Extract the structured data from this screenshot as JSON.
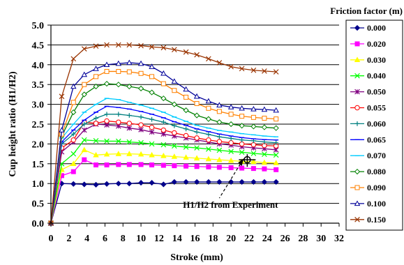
{
  "chart_data": {
    "type": "line",
    "xlabel": "Stroke (mm)",
    "ylabel": "Cup height ratio (H1/H2)",
    "xlim": [
      0,
      32
    ],
    "ylim": [
      0,
      5
    ],
    "xticks": [
      0,
      2,
      4,
      6,
      8,
      10,
      12,
      14,
      16,
      18,
      20,
      22,
      24,
      26,
      28,
      30,
      32
    ],
    "yticks": [
      "0.0",
      "0.5",
      "1.0",
      "1.5",
      "2.0",
      "2.5",
      "3.0",
      "3.5",
      "4.0",
      "4.5",
      "5.0"
    ],
    "grid": "horizontal",
    "legend_title": "Friction factor (m)",
    "legend_position": "right",
    "annotation": {
      "text": "H1/H2 from Experiment",
      "x": 21.8,
      "y": 1.6
    },
    "x": [
      0,
      1.2,
      2.5,
      3.7,
      5,
      6.2,
      7.5,
      8.7,
      10,
      11.2,
      12.5,
      13.7,
      15,
      16.2,
      17.5,
      18.7,
      20,
      21.2,
      22.5,
      23.7,
      25
    ],
    "series": [
      {
        "name": "0.000",
        "color": "#00008B",
        "marker": "diamond",
        "values": [
          0,
          1.0,
          0.99,
          0.98,
          0.97,
          0.99,
          1.0,
          1.0,
          1.02,
          1.02,
          0.98,
          1.04,
          1.04,
          1.04,
          1.04,
          1.04,
          1.04,
          1.04,
          1.04,
          1.04,
          1.04
        ]
      },
      {
        "name": "0.020",
        "color": "#FF00FF",
        "marker": "square",
        "values": [
          0,
          1.2,
          1.3,
          1.6,
          1.47,
          1.47,
          1.48,
          1.48,
          1.48,
          1.47,
          1.46,
          1.45,
          1.44,
          1.43,
          1.42,
          1.41,
          1.4,
          1.39,
          1.38,
          1.37,
          1.35
        ]
      },
      {
        "name": "0.030",
        "color": "#FFFF00",
        "marker": "triangle",
        "values": [
          0,
          1.35,
          1.5,
          1.85,
          1.72,
          1.74,
          1.75,
          1.75,
          1.74,
          1.72,
          1.7,
          1.68,
          1.66,
          1.64,
          1.62,
          1.6,
          1.58,
          1.56,
          1.55,
          1.53,
          1.52
        ]
      },
      {
        "name": "0.040",
        "color": "#00FF00",
        "marker": "x",
        "values": [
          0,
          1.5,
          1.75,
          2.1,
          2.08,
          2.07,
          2.07,
          2.05,
          2.03,
          2.0,
          1.98,
          1.95,
          1.92,
          1.9,
          1.87,
          1.84,
          1.81,
          1.79,
          1.76,
          1.74,
          1.72
        ]
      },
      {
        "name": "0.050",
        "color": "#800080",
        "marker": "asterisk",
        "values": [
          0,
          1.8,
          2.05,
          2.35,
          2.5,
          2.48,
          2.45,
          2.4,
          2.36,
          2.3,
          2.25,
          2.2,
          2.15,
          2.1,
          2.05,
          2.0,
          1.97,
          1.93,
          1.9,
          1.88,
          1.85
        ]
      },
      {
        "name": "0.055",
        "color": "#FF0000",
        "marker": "circle",
        "values": [
          0,
          1.9,
          2.1,
          2.55,
          2.52,
          2.58,
          2.55,
          2.52,
          2.48,
          2.42,
          2.35,
          2.28,
          2.21,
          2.15,
          2.1,
          2.06,
          2.03,
          2.0,
          1.98,
          1.96,
          1.95
        ]
      },
      {
        "name": "0.060",
        "color": "#008080",
        "marker": "plus",
        "values": [
          0,
          2.0,
          2.25,
          2.5,
          2.65,
          2.75,
          2.75,
          2.72,
          2.68,
          2.62,
          2.55,
          2.46,
          2.38,
          2.3,
          2.24,
          2.18,
          2.14,
          2.1,
          2.08,
          2.05,
          2.03
        ]
      },
      {
        "name": "0.065",
        "color": "#0000FF",
        "marker": "dash",
        "values": [
          0,
          2.05,
          2.35,
          2.6,
          2.8,
          2.95,
          2.92,
          2.88,
          2.82,
          2.75,
          2.66,
          2.56,
          2.47,
          2.38,
          2.31,
          2.25,
          2.2,
          2.16,
          2.13,
          2.11,
          2.1
        ]
      },
      {
        "name": "0.070",
        "color": "#00CCFF",
        "marker": "dash",
        "values": [
          0,
          2.15,
          2.5,
          2.8,
          3.0,
          3.15,
          3.12,
          3.05,
          2.98,
          2.9,
          2.8,
          2.68,
          2.57,
          2.47,
          2.4,
          2.34,
          2.3,
          2.26,
          2.23,
          2.2,
          2.18
        ]
      },
      {
        "name": "0.080",
        "color": "#008000",
        "marker": "diamond-open",
        "values": [
          0,
          2.2,
          2.8,
          3.25,
          3.45,
          3.52,
          3.5,
          3.45,
          3.4,
          3.3,
          3.15,
          3.0,
          2.85,
          2.72,
          2.63,
          2.55,
          2.5,
          2.46,
          2.44,
          2.42,
          2.4
        ]
      },
      {
        "name": "0.090",
        "color": "#FF8000",
        "marker": "square-open",
        "values": [
          0,
          2.25,
          3.05,
          3.5,
          3.7,
          3.83,
          3.83,
          3.82,
          3.78,
          3.7,
          3.52,
          3.35,
          3.18,
          3.02,
          2.9,
          2.82,
          2.75,
          2.7,
          2.67,
          2.65,
          2.63
        ]
      },
      {
        "name": "0.100",
        "color": "#000099",
        "marker": "triangle-open",
        "values": [
          0,
          2.35,
          3.45,
          3.75,
          3.9,
          4.0,
          4.03,
          4.05,
          4.03,
          3.95,
          3.78,
          3.58,
          3.38,
          3.2,
          3.08,
          2.98,
          2.93,
          2.9,
          2.88,
          2.87,
          2.85
        ]
      },
      {
        "name": "0.150",
        "color": "#993300",
        "marker": "x",
        "values": [
          0,
          3.2,
          4.15,
          4.4,
          4.47,
          4.5,
          4.5,
          4.5,
          4.48,
          4.45,
          4.43,
          4.38,
          4.32,
          4.25,
          4.15,
          4.05,
          3.95,
          3.9,
          3.86,
          3.84,
          3.82
        ]
      }
    ]
  }
}
